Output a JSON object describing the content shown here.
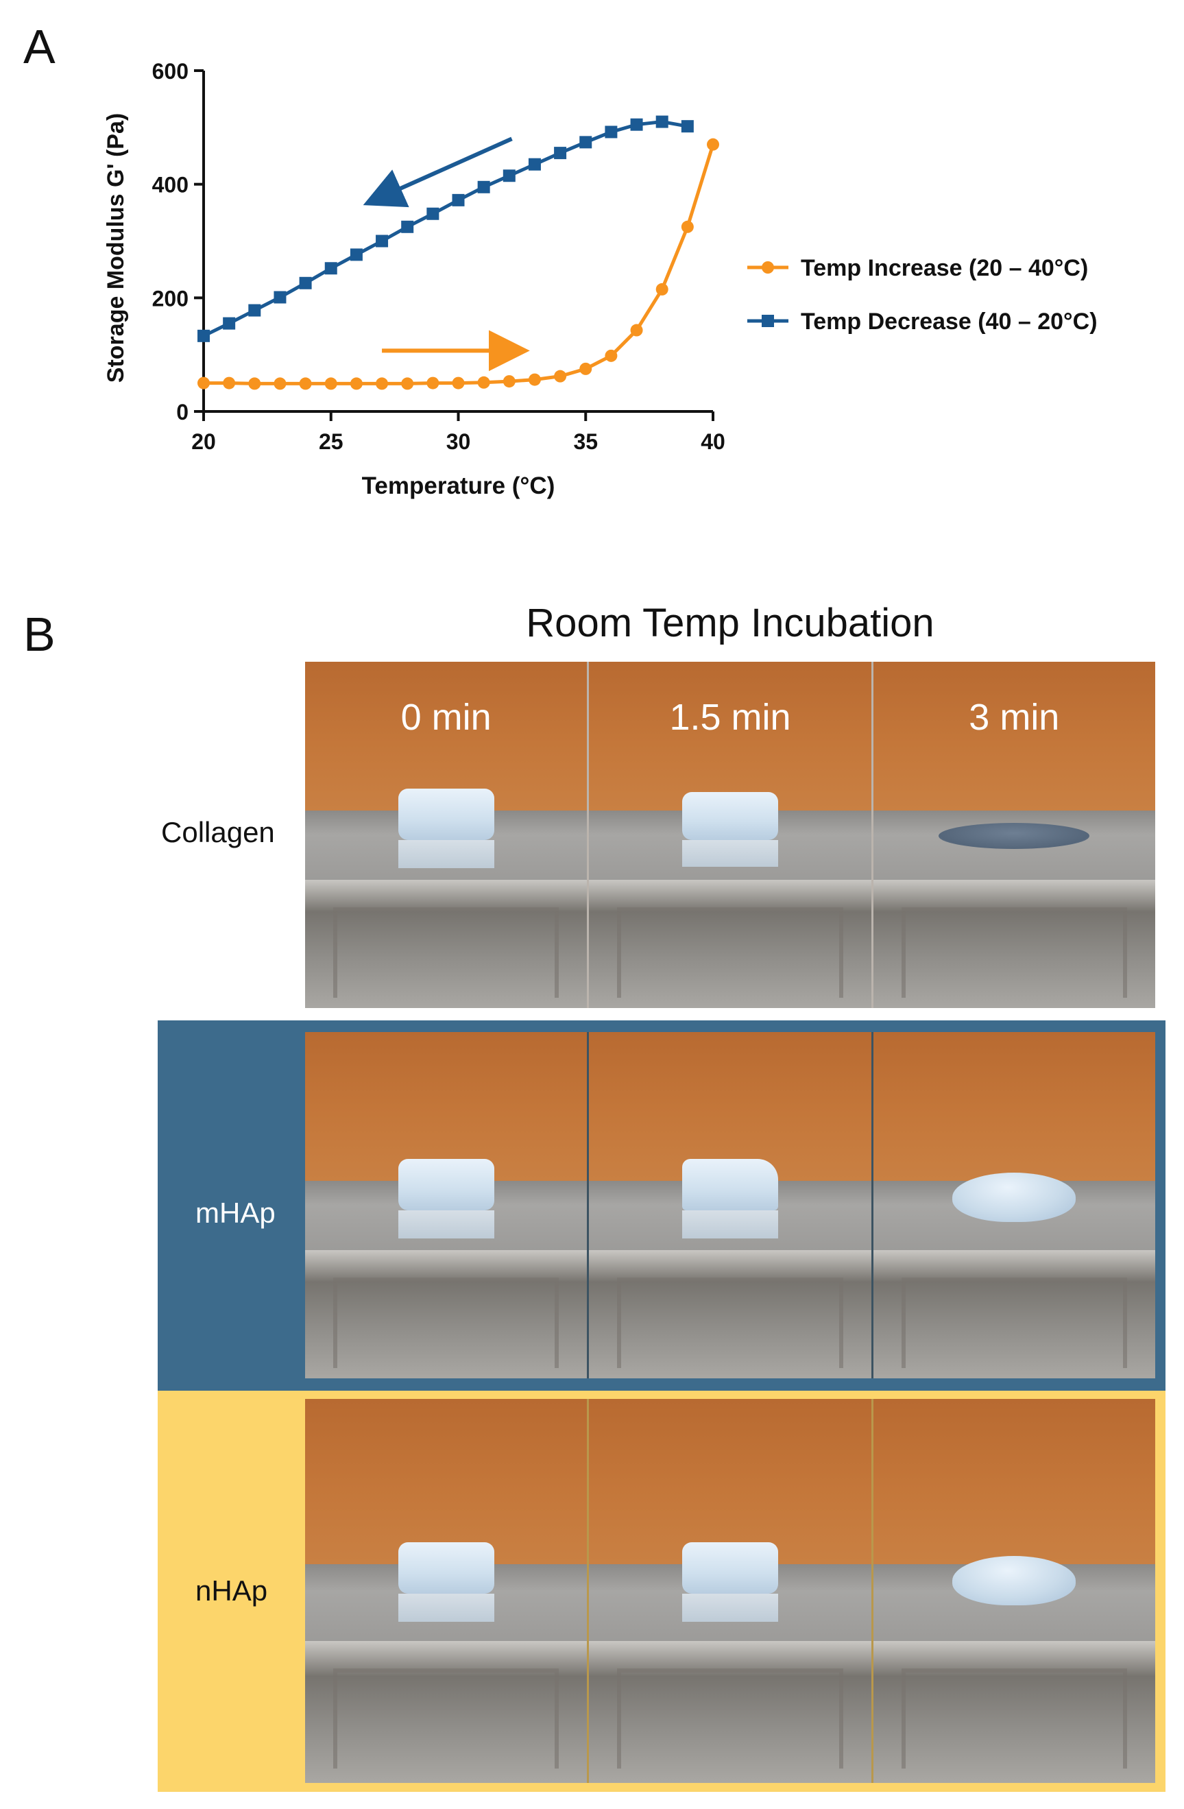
{
  "panel_a": {
    "letter": "A",
    "chart_data": {
      "type": "line",
      "title": "",
      "xlabel": "Temperature (°C)",
      "ylabel": "Storage Modulus G' (Pa)",
      "xlim": [
        20,
        40
      ],
      "ylim": [
        0,
        600
      ],
      "xticks": [
        20,
        25,
        30,
        35,
        40
      ],
      "yticks": [
        0,
        200,
        400,
        600
      ],
      "legend_position": "right",
      "series": [
        {
          "name": "Temp Increase (20 – 40°C)",
          "color": "#f7931e",
          "marker": "circle",
          "x": [
            20,
            21,
            22,
            23,
            24,
            25,
            26,
            27,
            28,
            29,
            30,
            31,
            32,
            33,
            34,
            35,
            36,
            37,
            38,
            39,
            40
          ],
          "y": [
            50,
            50,
            49,
            49,
            49,
            49,
            49,
            49,
            49,
            50,
            50,
            51,
            53,
            56,
            62,
            75,
            98,
            143,
            215,
            325,
            470
          ]
        },
        {
          "name": "Temp Decrease (40 – 20°C)",
          "color": "#1b5a94",
          "marker": "square",
          "x": [
            39,
            38,
            37,
            36,
            35,
            34,
            33,
            32,
            31,
            30,
            29,
            28,
            27,
            26,
            25,
            24,
            23,
            22,
            21,
            20
          ],
          "y": [
            502,
            510,
            505,
            492,
            474,
            455,
            435,
            415,
            395,
            372,
            348,
            325,
            300,
            276,
            252,
            226,
            201,
            178,
            155,
            133
          ]
        }
      ],
      "annotations": [
        {
          "type": "arrow",
          "direction": "down-left",
          "color": "#1b5a94",
          "from": [
            32.1,
            480
          ],
          "to": [
            27,
            378
          ]
        },
        {
          "type": "arrow",
          "direction": "right",
          "color": "#f7931e",
          "from": [
            27,
            107
          ],
          "to": [
            32,
            107
          ]
        }
      ]
    }
  },
  "panel_b": {
    "letter": "B",
    "title": "Room Temp Incubation",
    "time_labels": [
      "0 min",
      "1.5 min",
      "3 min"
    ],
    "rows": [
      {
        "label": "Collagen",
        "band_color": "#ffffff",
        "shapes": [
          "block",
          "block-thin",
          "puddle"
        ]
      },
      {
        "label": "mHAp",
        "band_color": "#3d6b8c",
        "shapes": [
          "block",
          "block-slant",
          "dome"
        ]
      },
      {
        "label": "nHAp",
        "band_color": "#fcd56b",
        "shapes": [
          "block",
          "block",
          "dome"
        ]
      }
    ]
  }
}
